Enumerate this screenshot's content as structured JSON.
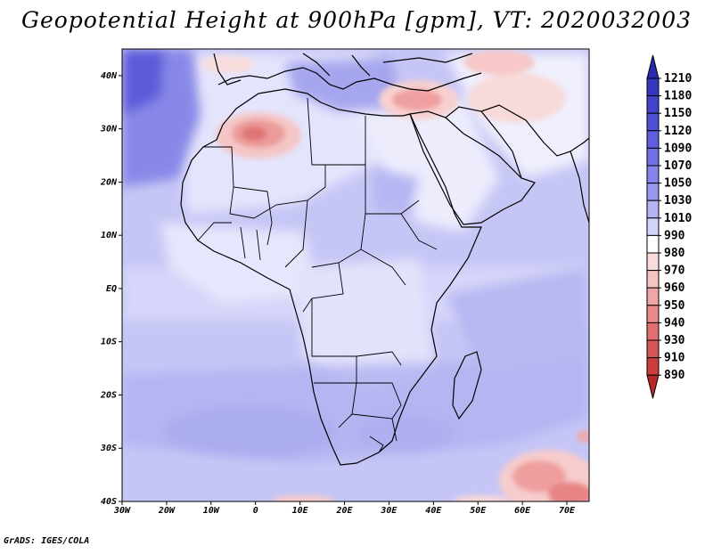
{
  "title": "Geopotential Height at 900hPa [gpm], VT: 2020032003",
  "footer": "GrADS: IGES/COLA",
  "map": {
    "lat_labels": [
      "40N",
      "30N",
      "20N",
      "10N",
      "EQ",
      "10S",
      "20S",
      "30S",
      "40S"
    ],
    "lon_labels": [
      "30W",
      "20W",
      "10W",
      "0",
      "10E",
      "20E",
      "30E",
      "40E",
      "50E",
      "60E",
      "70E"
    ]
  },
  "colorbar": {
    "levels": [
      "1210",
      "1180",
      "1150",
      "1120",
      "1090",
      "1070",
      "1050",
      "1030",
      "1010",
      "990",
      "980",
      "970",
      "960",
      "950",
      "940",
      "930",
      "910",
      "890"
    ],
    "colors": [
      "#2a2ab0",
      "#3636c0",
      "#4242cc",
      "#5050d6",
      "#5e5ede",
      "#7070e4",
      "#8484ea",
      "#9898ef",
      "#b4b4f4",
      "#d4d4fa",
      "#ffffff",
      "#fbdcdc",
      "#f6c3c3",
      "#f0a6a6",
      "#ea8a8a",
      "#e26f6f",
      "#d85555",
      "#cc3e3e",
      "#b82828"
    ]
  }
}
